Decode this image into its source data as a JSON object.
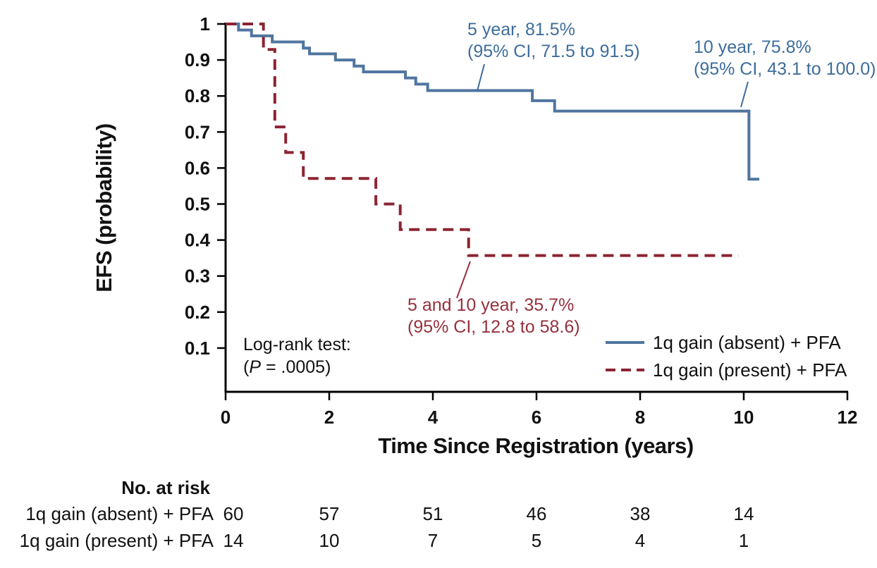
{
  "chart_data": {
    "type": "line",
    "subtype": "kaplan-meier-step",
    "xlabel": "Time Since Registration (years)",
    "ylabel": "EFS (probability)",
    "xlim": [
      0,
      12
    ],
    "ylim": [
      0,
      1
    ],
    "x_ticks": [
      "0",
      "2",
      "4",
      "6",
      "8",
      "10",
      "12"
    ],
    "x_tick_values": [
      0,
      2,
      4,
      6,
      8,
      10,
      12
    ],
    "y_ticks": [
      "1",
      "0.9",
      "0.8",
      "0.7",
      "0.6",
      "0.5",
      "0.4",
      "0.3",
      "0.2",
      "0.1"
    ],
    "y_tick_values": [
      1,
      0.9,
      0.8,
      0.7,
      0.6,
      0.5,
      0.4,
      0.3,
      0.2,
      0.1
    ],
    "grid": false,
    "series": [
      {
        "name": "1q gain (absent) + PFA",
        "style": "solid",
        "color": "#50759F",
        "points": [
          [
            0,
            1.0
          ],
          [
            0.25,
            0.983
          ],
          [
            0.5,
            0.967
          ],
          [
            0.9,
            0.95
          ],
          [
            1.5,
            0.933
          ],
          [
            1.62,
            0.917
          ],
          [
            2.12,
            0.9
          ],
          [
            2.48,
            0.883
          ],
          [
            2.66,
            0.867
          ],
          [
            3.47,
            0.85
          ],
          [
            3.67,
            0.833
          ],
          [
            3.9,
            0.815
          ],
          [
            5.92,
            0.787
          ],
          [
            6.35,
            0.758
          ],
          [
            10.1,
            0.569
          ]
        ],
        "end_time": 10.3
      },
      {
        "name": "1q gain (present) + PFA",
        "style": "dashed",
        "color": "#8C2433",
        "points": [
          [
            0,
            1.0
          ],
          [
            0.73,
            0.929
          ],
          [
            0.95,
            0.714
          ],
          [
            1.16,
            0.643
          ],
          [
            1.5,
            0.571
          ],
          [
            2.9,
            0.5
          ],
          [
            3.37,
            0.429
          ],
          [
            4.69,
            0.357
          ]
        ],
        "end_time": 9.9
      }
    ]
  },
  "annotations": {
    "five_year": {
      "line1": "5 year, 81.5%",
      "line2": "(95% CI, 71.5 to 91.5)"
    },
    "ten_year": {
      "line1": "10 year, 75.8%",
      "line2": "(95% CI, 43.1 to 100.0)"
    },
    "present": {
      "line1": "5 and 10 year, 35.7%",
      "line2": "(95% CI, 12.8 to 58.6)"
    },
    "logrank": {
      "line1": "Log-rank test:",
      "p_open": "(",
      "p_symbol": "P",
      "p_rest": " = .0005)"
    }
  },
  "legend": {
    "items": [
      {
        "label": "1q gain (absent) + PFA",
        "style": "solid",
        "color": "#50759F"
      },
      {
        "label": "1q gain (present) + PFA",
        "style": "dashed",
        "color": "#8C2433"
      }
    ]
  },
  "risk_table": {
    "header": "No. at risk",
    "times": [
      0,
      2,
      4,
      6,
      8,
      10
    ],
    "rows": [
      {
        "label": "1q gain (absent) + PFA",
        "counts": [
          "60",
          "57",
          "51",
          "46",
          "38",
          "14"
        ]
      },
      {
        "label": "1q gain (present) + PFA",
        "counts": [
          "14",
          "10",
          "7",
          "5",
          "4",
          "1"
        ]
      }
    ]
  },
  "colors": {
    "blue_line": "#50759F",
    "blue_text": "#3D6D9C",
    "red_line": "#8C2433",
    "red_text": "#97303E",
    "axis": "#000000"
  }
}
